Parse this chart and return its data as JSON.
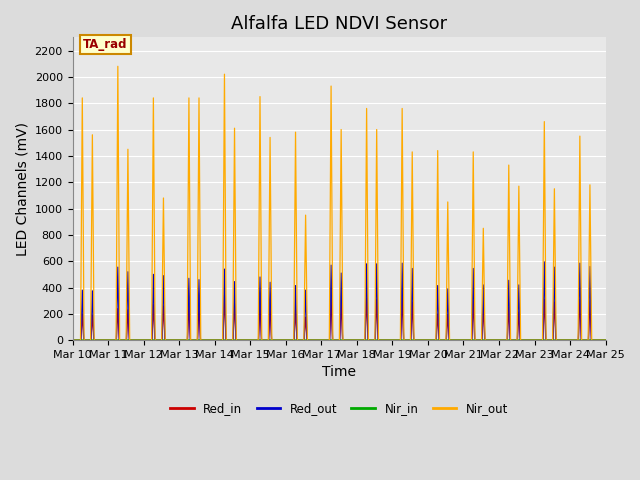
{
  "title": "Alfalfa LED NDVI Sensor",
  "ylabel": "LED Channels (mV)",
  "xlabel": "Time",
  "annotation_label": "TA_rad",
  "ylim": [
    0,
    2300
  ],
  "yticks": [
    0,
    200,
    400,
    600,
    800,
    1000,
    1200,
    1400,
    1600,
    1800,
    2000,
    2200
  ],
  "xtick_labels": [
    "Mar 10",
    "Mar 11",
    "Mar 12",
    "Mar 13",
    "Mar 14",
    "Mar 15",
    "Mar 16",
    "Mar 17",
    "Mar 18",
    "Mar 19",
    "Mar 20",
    "Mar 21",
    "Mar 22",
    "Mar 23",
    "Mar 24",
    "Mar 25"
  ],
  "bg_color": "#dcdcdc",
  "plot_bg_color": "#e8e8e8",
  "legend_entries": [
    "Red_in",
    "Red_out",
    "Nir_in",
    "Nir_out"
  ],
  "line_colors": [
    "#cc0000",
    "#0000cc",
    "#00aa00",
    "#ffaa00"
  ],
  "num_cycles": 15,
  "nir_out_peak1": [
    1840,
    2080,
    1840,
    1840,
    2020,
    1850,
    1580,
    1930,
    1760,
    1760,
    1440,
    1430,
    1330,
    1660,
    1550
  ],
  "nir_out_peak2": [
    1560,
    1450,
    1080,
    1840,
    1610,
    1540,
    950,
    1600,
    1600,
    1430,
    1050,
    850,
    1170,
    1150,
    1180
  ],
  "red_in_peak1": [
    200,
    240,
    270,
    270,
    340,
    290,
    230,
    320,
    320,
    330,
    200,
    300,
    250,
    310,
    310
  ],
  "red_in_peak2": [
    190,
    230,
    260,
    265,
    280,
    265,
    175,
    290,
    310,
    290,
    195,
    250,
    215,
    290,
    300
  ],
  "red_out_peak1": [
    380,
    555,
    500,
    470,
    540,
    480,
    415,
    570,
    580,
    585,
    415,
    545,
    455,
    595,
    585
  ],
  "red_out_peak2": [
    375,
    520,
    490,
    460,
    445,
    440,
    380,
    510,
    580,
    545,
    390,
    420,
    420,
    555,
    560
  ],
  "title_fontsize": 13,
  "tick_fontsize": 8,
  "label_fontsize": 10
}
